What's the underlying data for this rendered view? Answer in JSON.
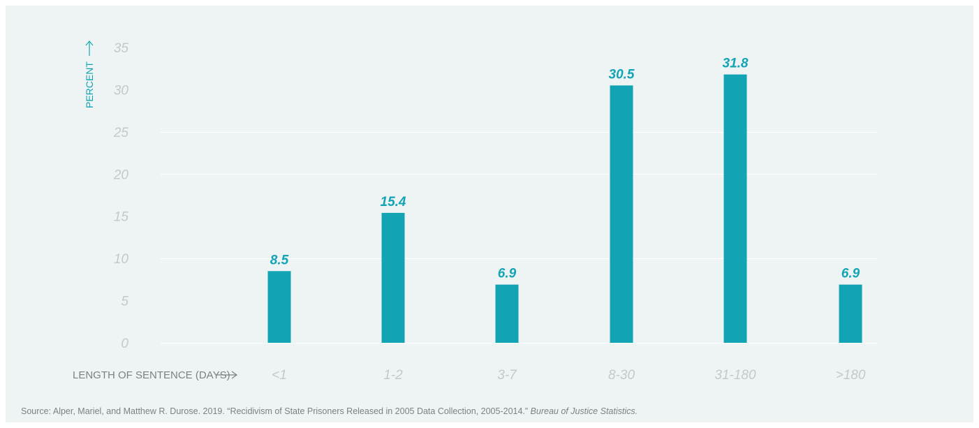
{
  "chart_data": {
    "type": "bar",
    "categories": [
      "<1",
      "1-2",
      "3-7",
      "8-30",
      "31-180",
      ">180"
    ],
    "values": [
      8.5,
      15.4,
      6.9,
      30.5,
      31.8,
      6.9
    ],
    "value_labels": [
      "8.5",
      "15.4",
      "6.9",
      "30.5",
      "31.8",
      "6.9"
    ],
    "title": "",
    "xlabel": "LENGTH OF SENTENCE (DAYS)",
    "ylabel": "PERCENT",
    "ylim": [
      0,
      35
    ],
    "yticks": [
      0,
      5,
      10,
      15,
      20,
      25,
      30,
      35
    ],
    "grid": true,
    "legend": "none",
    "bar_color": "#12a4b4"
  },
  "source": {
    "text": "Source: Alper, Mariel, and Matthew R. Durose. 2019. “Recidivism of State Prisoners Released in 2005 Data Collection, 2005-2014.” ",
    "publisher": "Bureau of Justice Statistics."
  }
}
